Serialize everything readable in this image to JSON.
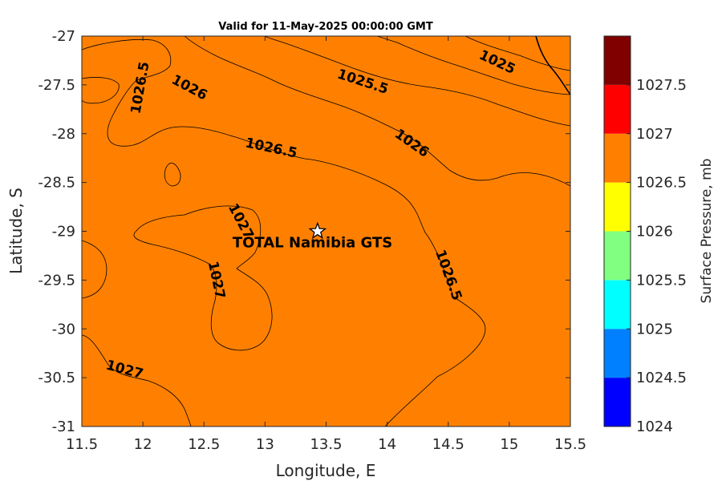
{
  "chart_data": {
    "type": "contour",
    "title": "Valid for 11-May-2025 00:00:00 GMT",
    "xlabel": "Longitude, E",
    "ylabel": "Latitude, S",
    "xlim": [
      11.5,
      15.5
    ],
    "ylim": [
      -31,
      -27
    ],
    "xticks": [
      "11.5",
      "12",
      "12.5",
      "13",
      "13.5",
      "14",
      "14.5",
      "15",
      "15.5"
    ],
    "yticks": [
      "-27",
      "-27.5",
      "-28",
      "-28.5",
      "-29",
      "-29.5",
      "-30",
      "-30.5",
      "-31"
    ],
    "colorbar": {
      "label": "Surface Pressure, mb",
      "ticks": [
        "1027.5",
        "1027",
        "1026.5",
        "1026",
        "1025.5",
        "1025",
        "1024.5",
        "1024"
      ],
      "levels": [
        {
          "range": [
            1024,
            1024.5
          ],
          "color": "#0000ff"
        },
        {
          "range": [
            1024.5,
            1025
          ],
          "color": "#0080ff"
        },
        {
          "range": [
            1025,
            1025.5
          ],
          "color": "#00ffff"
        },
        {
          "range": [
            1025.5,
            1026
          ],
          "color": "#80ff80"
        },
        {
          "range": [
            1026,
            1026.5
          ],
          "color": "#ffff00"
        },
        {
          "range": [
            1026.5,
            1027
          ],
          "color": "#ff8000"
        },
        {
          "range": [
            1027,
            1027.5
          ],
          "color": "#ff0000"
        },
        {
          "range": [
            1027.5,
            1028
          ],
          "color": "#800000"
        }
      ]
    },
    "contour_labels": [
      {
        "text": "1026.5",
        "lon": 11.98,
        "lat": -27.53
      },
      {
        "text": "1026",
        "lon": 12.38,
        "lat": -27.53
      },
      {
        "text": "1025.5",
        "lon": 13.8,
        "lat": -27.47
      },
      {
        "text": "1025",
        "lon": 14.9,
        "lat": -27.27
      },
      {
        "text": "1026.5",
        "lon": 13.05,
        "lat": -28.15
      },
      {
        "text": "1026",
        "lon": 14.2,
        "lat": -28.1
      },
      {
        "text": "1027",
        "lon": 12.8,
        "lat": -28.9
      },
      {
        "text": "1027",
        "lon": 12.6,
        "lat": -29.5
      },
      {
        "text": "1026.5",
        "lon": 14.5,
        "lat": -29.45
      },
      {
        "text": "1027",
        "lon": 11.85,
        "lat": -30.42
      }
    ],
    "site": {
      "name": "TOTAL Namibia GTS",
      "lon": 13.43,
      "lat": -29.0
    }
  }
}
